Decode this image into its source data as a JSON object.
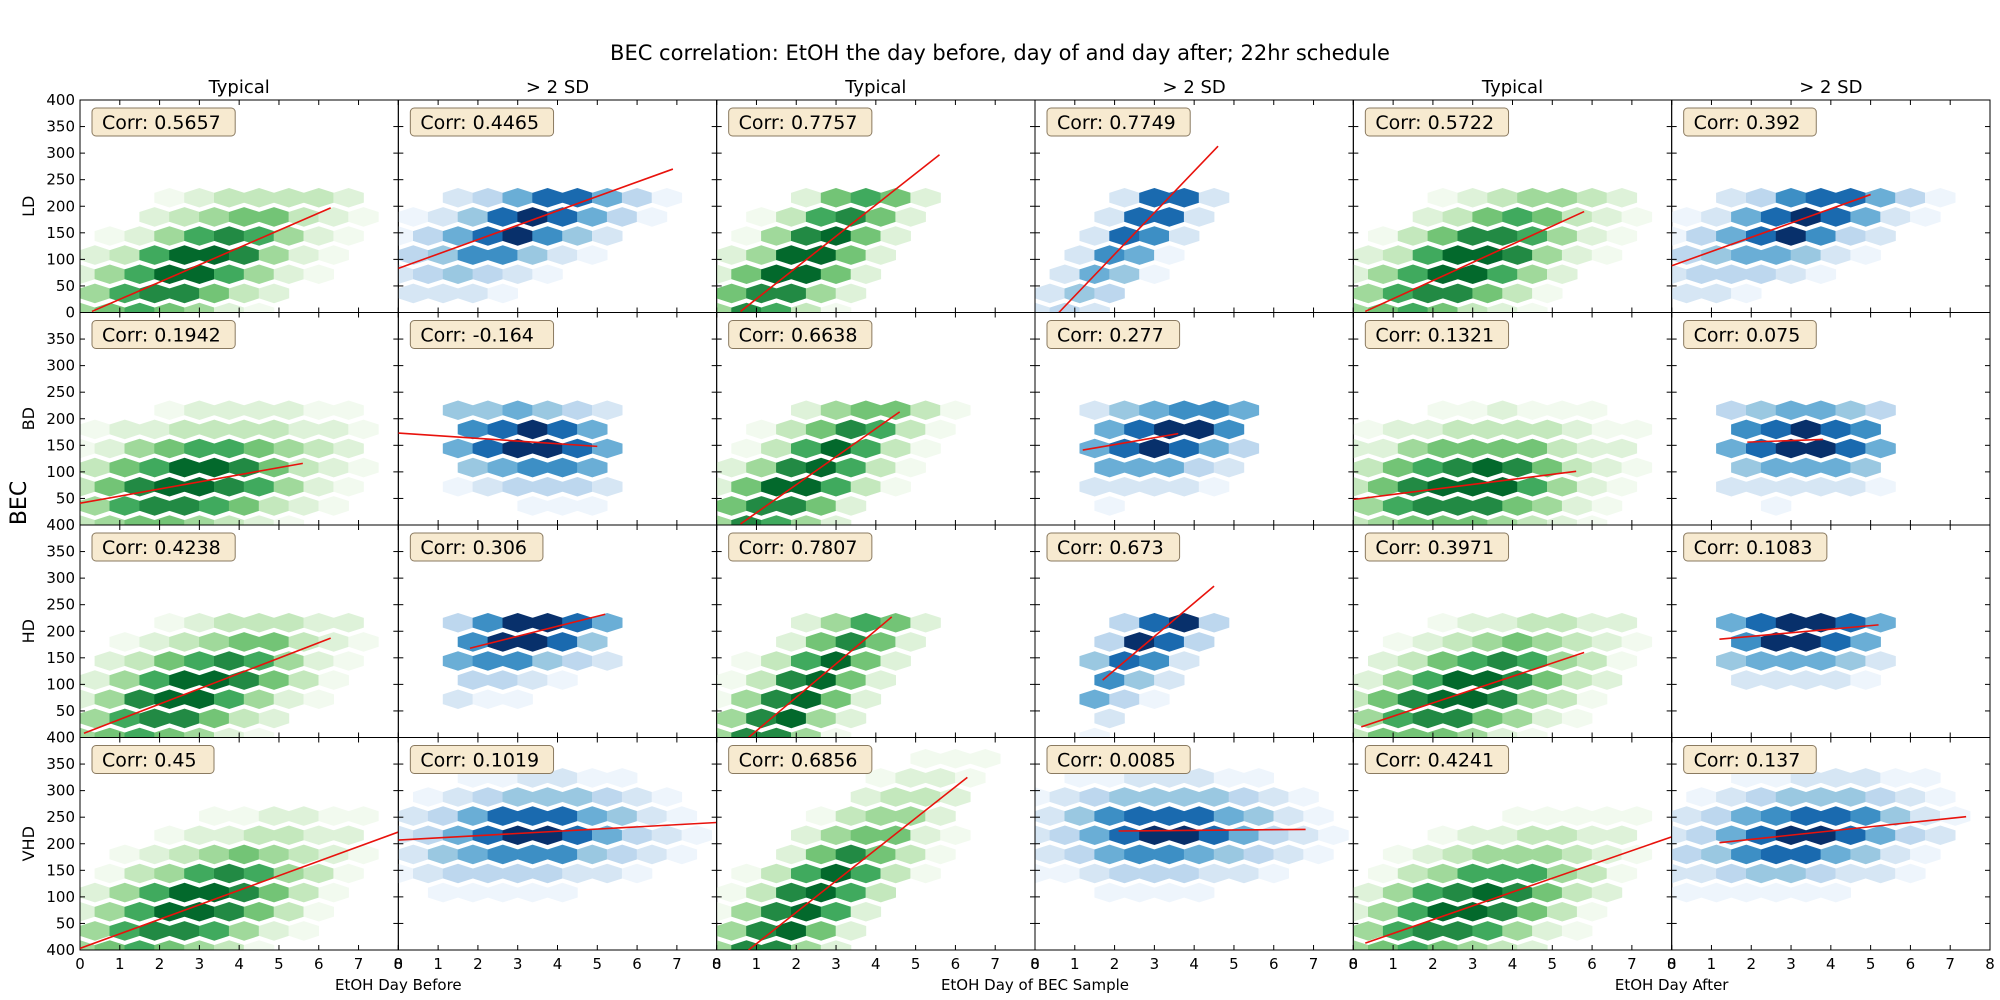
{
  "chart_data": {
    "type": "hexbin-scatter-grid",
    "title": "BEC correlation: EtOH the day before, day of and day after; 22hr schedule",
    "column_titles": [
      "Typical",
      "> 2 SD",
      "Typical",
      "> 2 SD",
      "Typical",
      "> 2 SD"
    ],
    "row_labels": [
      "LD",
      "BD",
      "HD",
      "VHD"
    ],
    "ylabel": "BEC",
    "xlabels": [
      "EtOH Day Before",
      "EtOH Day of BEC Sample",
      "EtOH Day After"
    ],
    "xlim": [
      0,
      8
    ],
    "ylim": [
      0,
      400
    ],
    "xticks": [
      0,
      1,
      2,
      3,
      4,
      5,
      6,
      7,
      8
    ],
    "yticks": [
      0,
      50,
      100,
      150,
      200,
      250,
      300,
      350,
      400
    ],
    "colormaps": {
      "Typical": "greens",
      "> 2 SD": "blues"
    },
    "panels": [
      {
        "row": "LD",
        "col": 0,
        "corr": "Corr: 0.5657",
        "line": [
          [
            0.3,
            2
          ],
          [
            6.3,
            197
          ]
        ]
      },
      {
        "row": "LD",
        "col": 1,
        "corr": "Corr: 0.4465",
        "line": [
          [
            0.0,
            83
          ],
          [
            6.9,
            270
          ]
        ]
      },
      {
        "row": "LD",
        "col": 2,
        "corr": "Corr: 0.7757",
        "line": [
          [
            0.6,
            2
          ],
          [
            5.6,
            297
          ]
        ]
      },
      {
        "row": "LD",
        "col": 3,
        "corr": "Corr: 0.7749",
        "line": [
          [
            0.6,
            0
          ],
          [
            4.6,
            313
          ]
        ]
      },
      {
        "row": "LD",
        "col": 4,
        "corr": "Corr: 0.5722",
        "line": [
          [
            0.3,
            2
          ],
          [
            5.8,
            190
          ]
        ]
      },
      {
        "row": "LD",
        "col": 5,
        "corr": "Corr: 0.392",
        "line": [
          [
            0.0,
            88
          ],
          [
            5.0,
            222
          ]
        ]
      },
      {
        "row": "BD",
        "col": 0,
        "corr": "Corr: 0.1942",
        "line": [
          [
            0.0,
            41
          ],
          [
            5.6,
            116
          ]
        ]
      },
      {
        "row": "BD",
        "col": 1,
        "corr": "Corr: -0.164",
        "line": [
          [
            0.0,
            173
          ],
          [
            5.0,
            148
          ]
        ]
      },
      {
        "row": "BD",
        "col": 2,
        "corr": "Corr: 0.6638",
        "line": [
          [
            0.6,
            2
          ],
          [
            4.6,
            213
          ]
        ]
      },
      {
        "row": "BD",
        "col": 3,
        "corr": "Corr: 0.277",
        "line": [
          [
            1.2,
            141
          ],
          [
            3.6,
            172
          ]
        ]
      },
      {
        "row": "BD",
        "col": 4,
        "corr": "Corr: 0.1321",
        "line": [
          [
            0.0,
            48
          ],
          [
            5.6,
            101
          ]
        ]
      },
      {
        "row": "BD",
        "col": 5,
        "corr": "Corr: 0.075",
        "line": [
          [
            1.9,
            156
          ],
          [
            3.8,
            161
          ]
        ]
      },
      {
        "row": "HD",
        "col": 0,
        "corr": "Corr: 0.4238",
        "line": [
          [
            0.1,
            8
          ],
          [
            6.3,
            187
          ]
        ]
      },
      {
        "row": "HD",
        "col": 1,
        "corr": "Corr: 0.306",
        "line": [
          [
            1.8,
            168
          ],
          [
            5.2,
            232
          ]
        ]
      },
      {
        "row": "HD",
        "col": 2,
        "corr": "Corr: 0.7807",
        "line": [
          [
            0.8,
            0
          ],
          [
            4.4,
            227
          ]
        ]
      },
      {
        "row": "HD",
        "col": 3,
        "corr": "Corr: 0.673",
        "line": [
          [
            1.7,
            108
          ],
          [
            4.5,
            285
          ]
        ]
      },
      {
        "row": "HD",
        "col": 4,
        "corr": "Corr: 0.3971",
        "line": [
          [
            0.2,
            20
          ],
          [
            5.8,
            160
          ]
        ]
      },
      {
        "row": "HD",
        "col": 5,
        "corr": "Corr: 0.1083",
        "line": [
          [
            1.2,
            185
          ],
          [
            5.2,
            212
          ]
        ]
      },
      {
        "row": "VHD",
        "col": 0,
        "corr": "Corr: 0.45",
        "line": [
          [
            0.0,
            3
          ],
          [
            8.0,
            222
          ]
        ]
      },
      {
        "row": "VHD",
        "col": 1,
        "corr": "Corr: 0.1019",
        "line": [
          [
            0.0,
            207
          ],
          [
            8.0,
            240
          ]
        ]
      },
      {
        "row": "VHD",
        "col": 2,
        "corr": "Corr: 0.6856",
        "line": [
          [
            0.8,
            0
          ],
          [
            6.3,
            325
          ]
        ]
      },
      {
        "row": "VHD",
        "col": 3,
        "corr": "Corr: 0.0085",
        "line": [
          [
            2.1,
            224
          ],
          [
            6.8,
            227
          ]
        ]
      },
      {
        "row": "VHD",
        "col": 4,
        "corr": "Corr: 0.4241",
        "line": [
          [
            0.3,
            13
          ],
          [
            8.0,
            213
          ]
        ]
      },
      {
        "row": "VHD",
        "col": 5,
        "corr": "Corr: 0.137",
        "line": [
          [
            1.2,
            202
          ],
          [
            7.4,
            251
          ]
        ]
      }
    ]
  }
}
